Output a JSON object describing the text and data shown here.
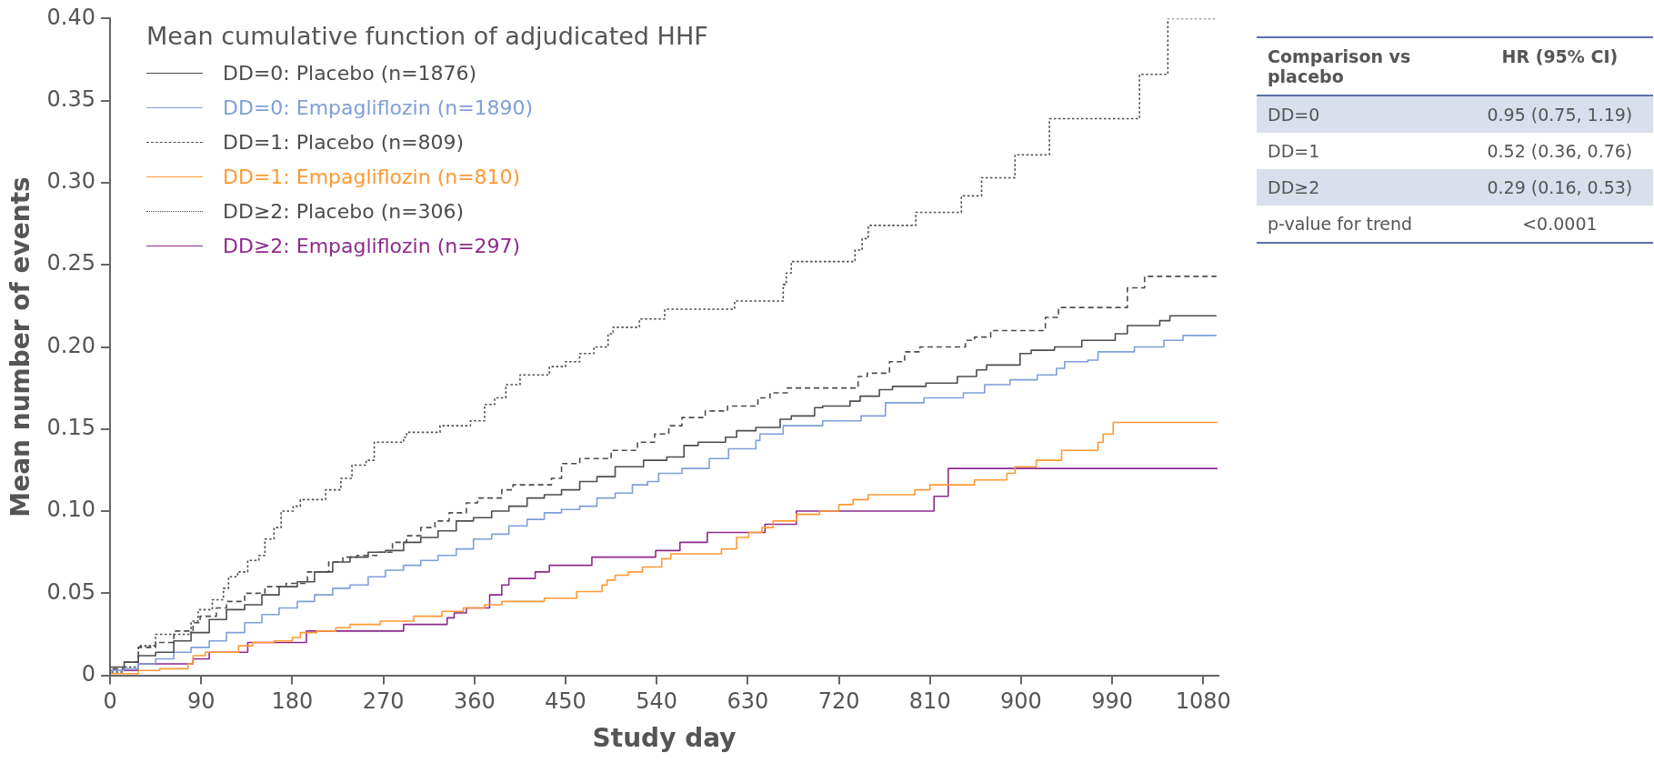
{
  "chart_data": [
    {
      "type": "step",
      "xlabel": "Study day",
      "ylabel": "Mean number of events",
      "legend_title": "Mean cumulative function of adjudicated HHF",
      "xlim": [
        0,
        1095
      ],
      "xticks": [
        0,
        90,
        180,
        270,
        360,
        450,
        540,
        630,
        720,
        810,
        900,
        990,
        1080
      ],
      "ylim": [
        0,
        0.4
      ],
      "yticks": [
        0,
        0.05,
        {
          "value": 0.1,
          "label": "0.10"
        },
        0.15,
        {
          "value": 0.2,
          "label": "0.20"
        },
        0.25,
        {
          "value": 0.3,
          "label": "0.30"
        },
        0.35,
        {
          "value": 0.4,
          "label": "0.40"
        }
      ],
      "grid": false,
      "legend": "top left",
      "series": [
        {
          "name": "DD=0: Placebo (n=1876)",
          "color": "#4d4d4d",
          "line_style": "solid",
          "x": [
            0,
            14,
            28,
            45,
            63,
            80,
            98,
            115,
            133,
            150,
            167,
            185,
            202,
            220,
            237,
            255,
            272,
            290,
            307,
            324,
            342,
            359,
            377,
            394,
            412,
            429,
            446,
            464,
            481,
            499,
            527,
            550,
            567,
            581,
            608,
            619,
            638,
            662,
            673,
            696,
            704,
            731,
            741,
            760,
            773,
            806,
            837,
            856,
            866,
            899,
            910,
            933,
            960,
            993,
            1005,
            1037,
            1047,
            1084,
            1093
          ],
          "values": [
            0,
            0.005,
            0.008,
            0.012,
            0.014,
            0.021,
            0.026,
            0.034,
            0.04,
            0.043,
            0.049,
            0.054,
            0.057,
            0.063,
            0.069,
            0.072,
            0.075,
            0.076,
            0.081,
            0.084,
            0.088,
            0.094,
            0.096,
            0.1,
            0.103,
            0.108,
            0.11,
            0.113,
            0.118,
            0.121,
            0.127,
            0.131,
            0.133,
            0.14,
            0.142,
            0.145,
            0.149,
            0.151,
            0.156,
            0.158,
            0.163,
            0.164,
            0.167,
            0.17,
            0.174,
            0.176,
            0.178,
            0.182,
            0.186,
            0.189,
            0.196,
            0.198,
            0.2,
            0.204,
            0.208,
            0.213,
            0.216,
            0.219,
            0.219
          ]
        },
        {
          "name": "DD=0: Empagliflozin (n=1890)",
          "color": "#7f9fd8",
          "line_style": "solid",
          "x": [
            0,
            14,
            28,
            45,
            63,
            80,
            98,
            115,
            133,
            150,
            167,
            185,
            202,
            220,
            237,
            255,
            272,
            290,
            307,
            324,
            342,
            359,
            377,
            394,
            412,
            429,
            446,
            464,
            481,
            499,
            516,
            531,
            542,
            565,
            592,
            611,
            638,
            642,
            665,
            704,
            742,
            766,
            804,
            843,
            864,
            889,
            916,
            935,
            943,
            966,
            976,
            1012,
            1041,
            1060,
            1091,
            1093
          ],
          "values": [
            0,
            0.003,
            0.004,
            0.007,
            0.01,
            0.014,
            0.017,
            0.021,
            0.026,
            0.032,
            0.037,
            0.041,
            0.045,
            0.049,
            0.053,
            0.055,
            0.06,
            0.064,
            0.067,
            0.07,
            0.073,
            0.077,
            0.083,
            0.086,
            0.091,
            0.095,
            0.099,
            0.101,
            0.103,
            0.108,
            0.111,
            0.116,
            0.118,
            0.123,
            0.126,
            0.132,
            0.138,
            0.143,
            0.147,
            0.152,
            0.155,
            0.158,
            0.166,
            0.169,
            0.172,
            0.177,
            0.18,
            0.183,
            0.187,
            0.191,
            0.192,
            0.197,
            0.2,
            0.204,
            0.207,
            0.207
          ]
        },
        {
          "name": "DD=1: Placebo (n=809)",
          "color": "#4d4d4d",
          "line_style": "dashed",
          "x": [
            0,
            14,
            28,
            45,
            63,
            82,
            89,
            105,
            115,
            133,
            153,
            174,
            195,
            216,
            230,
            244,
            265,
            279,
            293,
            307,
            321,
            335,
            352,
            363,
            387,
            398,
            436,
            446,
            464,
            495,
            521,
            538,
            552,
            565,
            588,
            610,
            640,
            652,
            669,
            739,
            748,
            770,
            785,
            800,
            845,
            854,
            870,
            924,
            937,
            1005,
            1022,
            1033,
            1093
          ],
          "values": [
            0,
            0.004,
            0.008,
            0.017,
            0.02,
            0.027,
            0.032,
            0.036,
            0.041,
            0.045,
            0.05,
            0.054,
            0.056,
            0.063,
            0.069,
            0.072,
            0.073,
            0.075,
            0.081,
            0.085,
            0.09,
            0.094,
            0.099,
            0.105,
            0.108,
            0.113,
            0.116,
            0.12,
            0.129,
            0.132,
            0.137,
            0.142,
            0.147,
            0.152,
            0.157,
            0.161,
            0.164,
            0.169,
            0.172,
            0.175,
            0.182,
            0.184,
            0.191,
            0.197,
            0.2,
            0.204,
            0.206,
            0.21,
            0.218,
            0.224,
            0.236,
            0.243,
            0.243
          ]
        },
        {
          "name": "DD=1: Empagliflozin (n=810)",
          "color": "#ff9933",
          "line_style": "solid",
          "x": [
            0,
            28,
            49,
            77,
            82,
            94,
            127,
            141,
            162,
            180,
            188,
            204,
            223,
            237,
            267,
            300,
            328,
            349,
            370,
            387,
            429,
            461,
            486,
            491,
            499,
            512,
            526,
            545,
            554,
            604,
            619,
            631,
            644,
            655,
            678,
            701,
            720,
            734,
            749,
            795,
            810,
            854,
            886,
            894,
            915,
            940,
            976,
            981,
            991,
            1010,
            1094
          ],
          "values": [
            0,
            0.001,
            0.003,
            0.004,
            0.007,
            0.012,
            0.014,
            0.018,
            0.02,
            0.021,
            0.023,
            0.026,
            0.027,
            0.029,
            0.031,
            0.033,
            0.036,
            0.039,
            0.041,
            0.043,
            0.045,
            0.047,
            0.051,
            0.055,
            0.058,
            0.061,
            0.063,
            0.066,
            0.071,
            0.074,
            0.077,
            0.084,
            0.087,
            0.09,
            0.094,
            0.098,
            0.1,
            0.104,
            0.107,
            0.11,
            0.113,
            0.116,
            0.119,
            0.123,
            0.127,
            0.131,
            0.137,
            0.142,
            0.147,
            0.154,
            0.154
          ]
        },
        {
          "name": "DD≥2: Placebo (n=306)",
          "color": "#4d4d4d",
          "line_style": "dotted",
          "x": [
            0,
            14,
            28,
            45,
            80,
            87,
            101,
            112,
            117,
            126,
            136,
            147,
            153,
            162,
            169,
            181,
            188,
            213,
            228,
            239,
            253,
            261,
            290,
            293,
            326,
            356,
            370,
            380,
            391,
            405,
            434,
            450,
            464,
            478,
            492,
            497,
            523,
            548,
            617,
            665,
            668,
            673,
            736,
            743,
            749,
            796,
            841,
            861,
            894,
            928,
            1017,
            1045,
            1063,
            1093
          ],
          "values": [
            0,
            0.002,
            0.005,
            0.018,
            0.025,
            0.033,
            0.04,
            0.046,
            0.053,
            0.06,
            0.063,
            0.07,
            0.073,
            0.083,
            0.09,
            0.1,
            0.103,
            0.107,
            0.113,
            0.12,
            0.128,
            0.131,
            0.142,
            0.145,
            0.148,
            0.152,
            0.155,
            0.165,
            0.169,
            0.177,
            0.183,
            0.188,
            0.191,
            0.196,
            0.2,
            0.208,
            0.212,
            0.217,
            0.223,
            0.228,
            0.238,
            0.245,
            0.252,
            0.259,
            0.266,
            0.274,
            0.282,
            0.292,
            0.303,
            0.317,
            0.339,
            0.366,
            0.4,
            0.4
          ]
        },
        {
          "name": "DD≥2: Empagliflozin (n=297)",
          "color": "#8e2a8e",
          "line_style": "solid",
          "x": [
            0,
            28,
            82,
            98,
            136,
            194,
            290,
            333,
            340,
            352,
            375,
            387,
            394,
            420,
            434,
            476,
            539,
            563,
            590,
            647,
            678,
            814,
            828,
            977,
            1094
          ],
          "values": [
            0,
            0.003,
            0.007,
            0.01,
            0.014,
            0.02,
            0.027,
            0.031,
            0.035,
            0.038,
            0.041,
            0.049,
            0.055,
            0.059,
            0.063,
            0.067,
            0.072,
            0.076,
            0.081,
            0.087,
            0.092,
            0.1,
            0.109,
            0.126,
            0.126
          ]
        }
      ]
    },
    {
      "type": "other",
      "annotations": [
        "Comparison vs placebo",
        "HR (95% CI)",
        "DD=0",
        "0.95 (0.75, 1.19)",
        "DD=1",
        "0.52 (0.36, 0.76)",
        "DD≥2",
        "0.29 (0.16, 0.53)",
        "p-value for trend",
        "<0.0001"
      ]
    }
  ]
}
